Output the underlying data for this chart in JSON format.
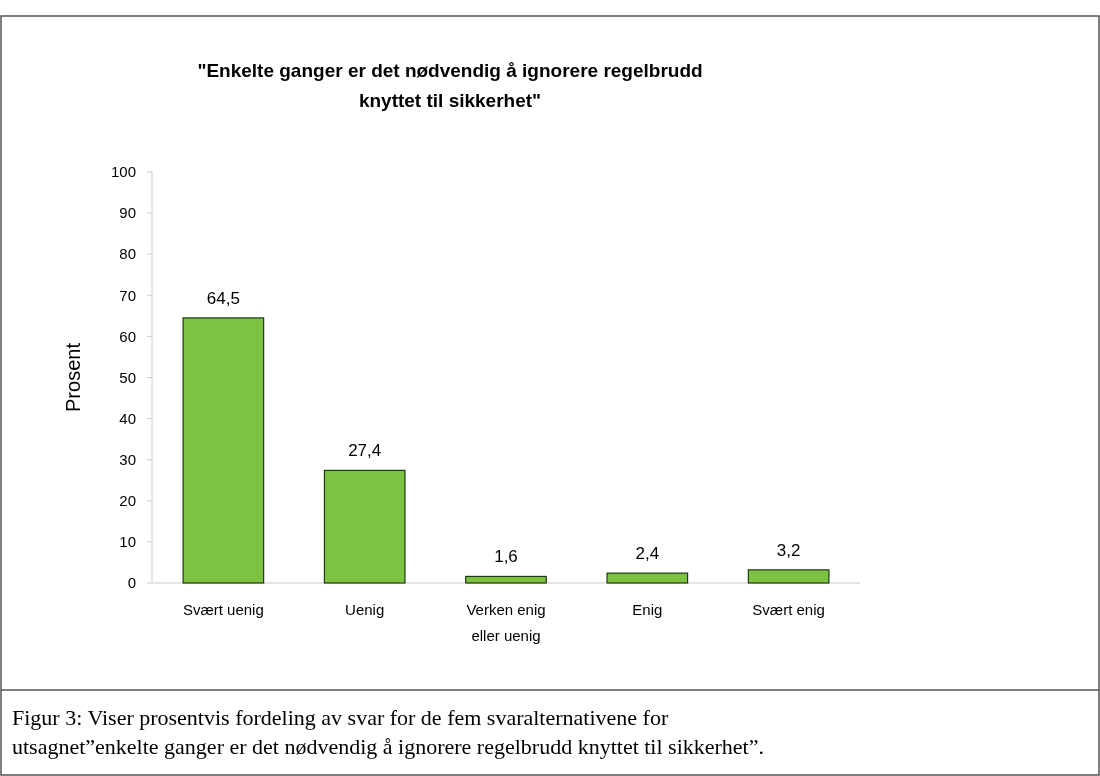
{
  "chart_data": {
    "type": "bar",
    "title": "\"Enkelte ganger er det nødvendig å ignorere regelbrudd knyttet til sikkerhet\"",
    "ylabel": "Prosent",
    "categories": [
      "Svært uenig",
      "Uenig",
      "Verken enig eller uenig",
      "Enig",
      "Svært enig"
    ],
    "values": [
      64.5,
      27.4,
      1.6,
      2.4,
      3.2
    ],
    "color": "#7dc243",
    "ylim": [
      0,
      100
    ],
    "yticks": [
      0,
      10,
      20,
      30,
      40,
      50,
      60,
      70,
      80,
      90,
      100
    ],
    "value_labels": [
      "64,5",
      "27,4",
      "1,6",
      "2,4",
      "3,2"
    ],
    "grid": false,
    "annotations": [
      "Figur 3: Viser prosentvis fordeling av svar for de fem svaralternativene for utsagnet”enkelte ganger er det nødvendig å ignorere regelbrudd knyttet til sikkerhet”."
    ]
  }
}
